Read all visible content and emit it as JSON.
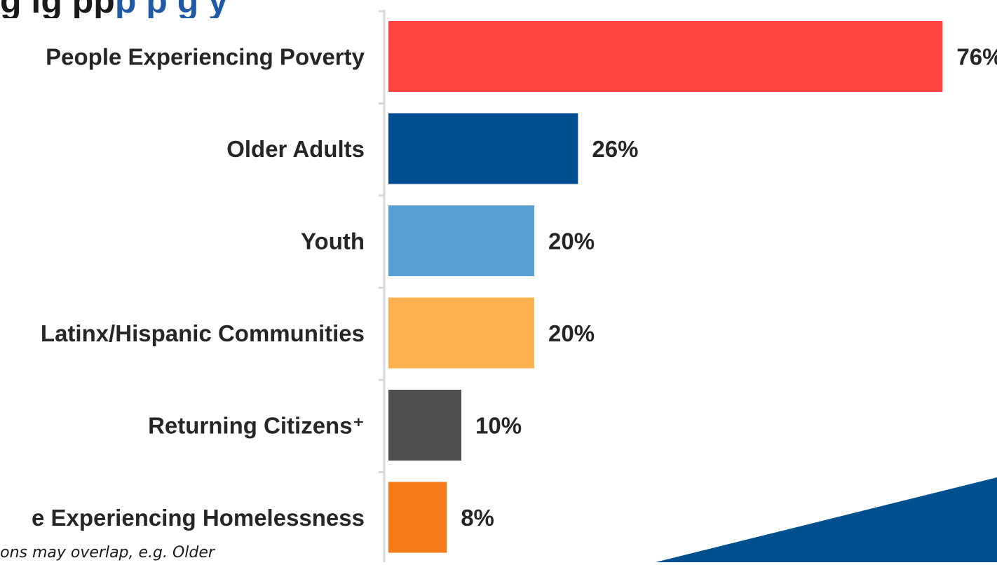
{
  "title": {
    "part1": "g        ig  pp",
    "part2": "p  p         g        y"
  },
  "footnote": "ions may overlap, e.g. Older",
  "colors": {
    "decoration": "#00508f",
    "axis": "#d9d9d9"
  },
  "chart_data": {
    "type": "bar",
    "orientation": "horizontal",
    "categories": [
      "People Experiencing Poverty",
      "Older Adults",
      "Youth",
      "Latinx/Hispanic Communities",
      "Returning Citizens⁺",
      "e Experiencing Homelessness"
    ],
    "values": [
      76,
      26,
      20,
      20,
      10,
      8
    ],
    "value_labels": [
      "76%",
      "26%",
      "20%",
      "20%",
      "10%",
      "8%"
    ],
    "colors": [
      "#ff4540",
      "#005091",
      "#579fd3",
      "#fdb14f",
      "#4f4f4f",
      "#f47a1a"
    ],
    "xlim": [
      0,
      76
    ],
    "grid": false,
    "legend": "none"
  }
}
